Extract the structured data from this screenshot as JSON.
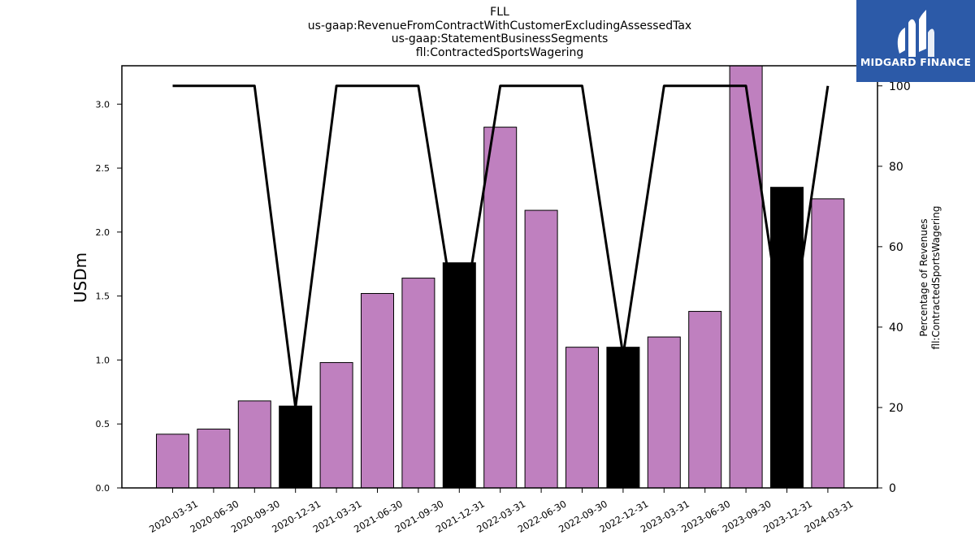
{
  "title_lines": [
    "FLL",
    "us-gaap:RevenueFromContractWithCustomerExcludingAssessedTax",
    "us-gaap:StatementBusinessSegments",
    "fll:ContractedSportsWagering"
  ],
  "logo": {
    "text": "MIDGARD FINANCE",
    "icon": "midgard-logo-icon",
    "background": "#2c5aa8"
  },
  "colors": {
    "bar_default": "#bf80bf",
    "bar_highlight": "#000000",
    "line": "#000000"
  },
  "chart_data": {
    "type": "bar",
    "categories": [
      "2020-03-31",
      "2020-06-30",
      "2020-09-30",
      "2020-12-31",
      "2021-03-31",
      "2021-06-30",
      "2021-09-30",
      "2021-12-31",
      "2022-03-31",
      "2022-06-30",
      "2022-09-30",
      "2022-12-31",
      "2023-03-31",
      "2023-06-30",
      "2023-09-30",
      "2023-12-31",
      "2024-03-31"
    ],
    "series": [
      {
        "type": "bar",
        "axis": "left",
        "values": [
          0.42,
          0.46,
          0.68,
          0.64,
          0.98,
          1.52,
          1.64,
          1.76,
          2.82,
          2.17,
          1.1,
          1.1,
          1.18,
          1.38,
          3.32,
          2.35,
          2.26
        ],
        "highlighted": [
          false,
          false,
          false,
          true,
          false,
          false,
          false,
          true,
          false,
          false,
          false,
          true,
          false,
          false,
          false,
          true,
          false
        ]
      },
      {
        "type": "line",
        "axis": "right",
        "values": [
          100,
          100,
          100,
          20,
          100,
          100,
          100,
          36,
          100,
          100,
          100,
          33,
          100,
          100,
          100,
          31,
          100
        ]
      }
    ],
    "ylabel": "USDm",
    "y2label_lines": [
      "Percentage of Revenues",
      "fll:ContractedSportsWagering"
    ],
    "ylim": [
      0,
      3.3
    ],
    "yticks": [
      0.0,
      0.5,
      1.0,
      1.5,
      2.0,
      2.5,
      3.0
    ],
    "ytick_labels": [
      "0.0",
      "0.5",
      "1.0",
      "1.5",
      "2.0",
      "2.5",
      "3.0"
    ],
    "y2lim": [
      0,
      105
    ],
    "y2ticks": [
      0,
      20,
      40,
      60,
      80,
      100
    ],
    "y2tick_labels": [
      "0",
      "20",
      "40",
      "60",
      "80",
      "100"
    ],
    "grid": false,
    "legend": "none"
  }
}
